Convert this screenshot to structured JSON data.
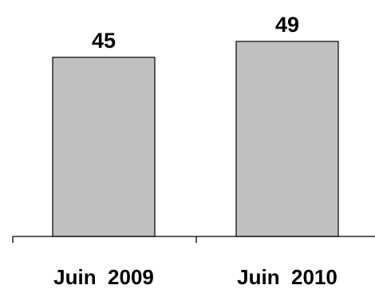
{
  "chart_data": {
    "type": "bar",
    "categories": [
      "Juin  2009",
      "Juin  2010"
    ],
    "values": [
      45,
      49
    ],
    "data_labels": [
      "45",
      "49"
    ],
    "ylim": [
      0,
      49
    ],
    "bar_color": "#c0c0c0",
    "grid": false,
    "legend": "none"
  }
}
